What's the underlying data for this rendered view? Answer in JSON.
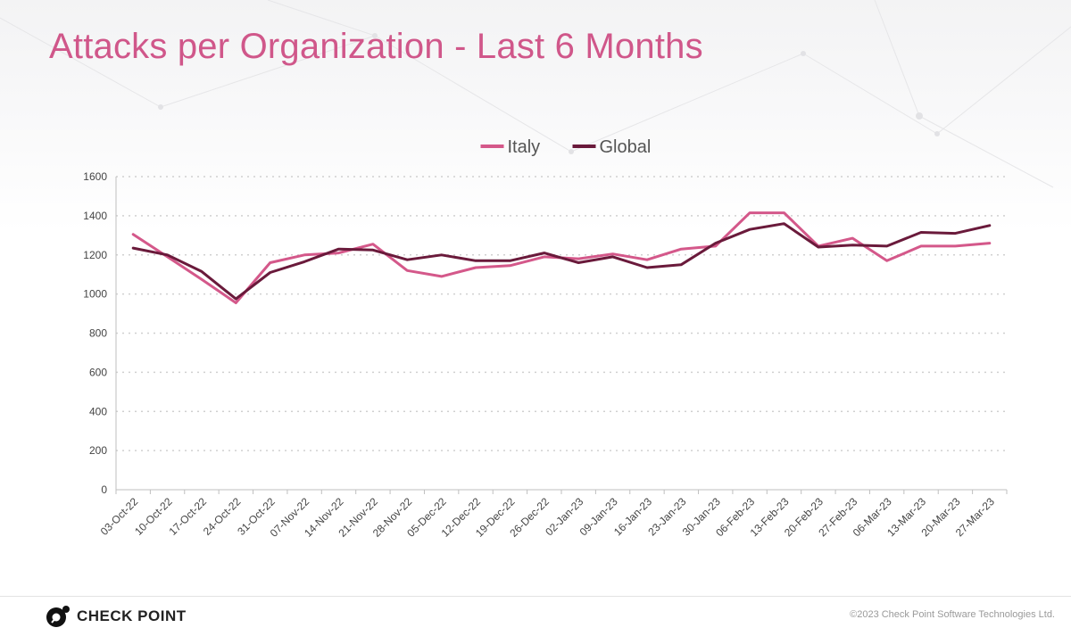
{
  "slide": {
    "title": "Attacks per Organization - Last 6 Months"
  },
  "footer": {
    "brand": "CHECK POINT",
    "copyright": "©2023 Check Point Software Technologies Ltd."
  },
  "chart_data": {
    "type": "line",
    "title": "",
    "xlabel": "",
    "ylabel": "",
    "ylim": [
      0,
      1600
    ],
    "yticks": [
      "0",
      "200",
      "400",
      "600",
      "800",
      "1000",
      "1200",
      "1400",
      "1600"
    ],
    "grid": true,
    "legend_position": "top-center",
    "categories": [
      "03-Oct-22",
      "10-Oct-22",
      "17-Oct-22",
      "24-Oct-22",
      "31-Oct-22",
      "07-Nov-22",
      "14-Nov-22",
      "21-Nov-22",
      "28-Nov-22",
      "05-Dec-22",
      "12-Dec-22",
      "19-Dec-22",
      "26-Dec-22",
      "02-Jan-23",
      "09-Jan-23",
      "16-Jan-23",
      "23-Jan-23",
      "30-Jan-23",
      "06-Feb-23",
      "13-Feb-23",
      "20-Feb-23",
      "27-Feb-23",
      "06-Mar-23",
      "13-Mar-23",
      "20-Mar-23",
      "27-Mar-23"
    ],
    "series": [
      {
        "name": "Italy",
        "color": "#d4588a",
        "values": [
          1305,
          1190,
          1075,
          955,
          1160,
          1200,
          1210,
          1255,
          1120,
          1090,
          1135,
          1145,
          1190,
          1180,
          1205,
          1175,
          1230,
          1245,
          1415,
          1415,
          1245,
          1285,
          1170,
          1245,
          1245,
          1260
        ]
      },
      {
        "name": "Global",
        "color": "#6a1a3b",
        "values": [
          1235,
          1200,
          1115,
          975,
          1110,
          1165,
          1230,
          1225,
          1175,
          1200,
          1170,
          1170,
          1210,
          1160,
          1190,
          1135,
          1150,
          1260,
          1330,
          1360,
          1240,
          1250,
          1245,
          1315,
          1310,
          1350
        ]
      }
    ]
  }
}
